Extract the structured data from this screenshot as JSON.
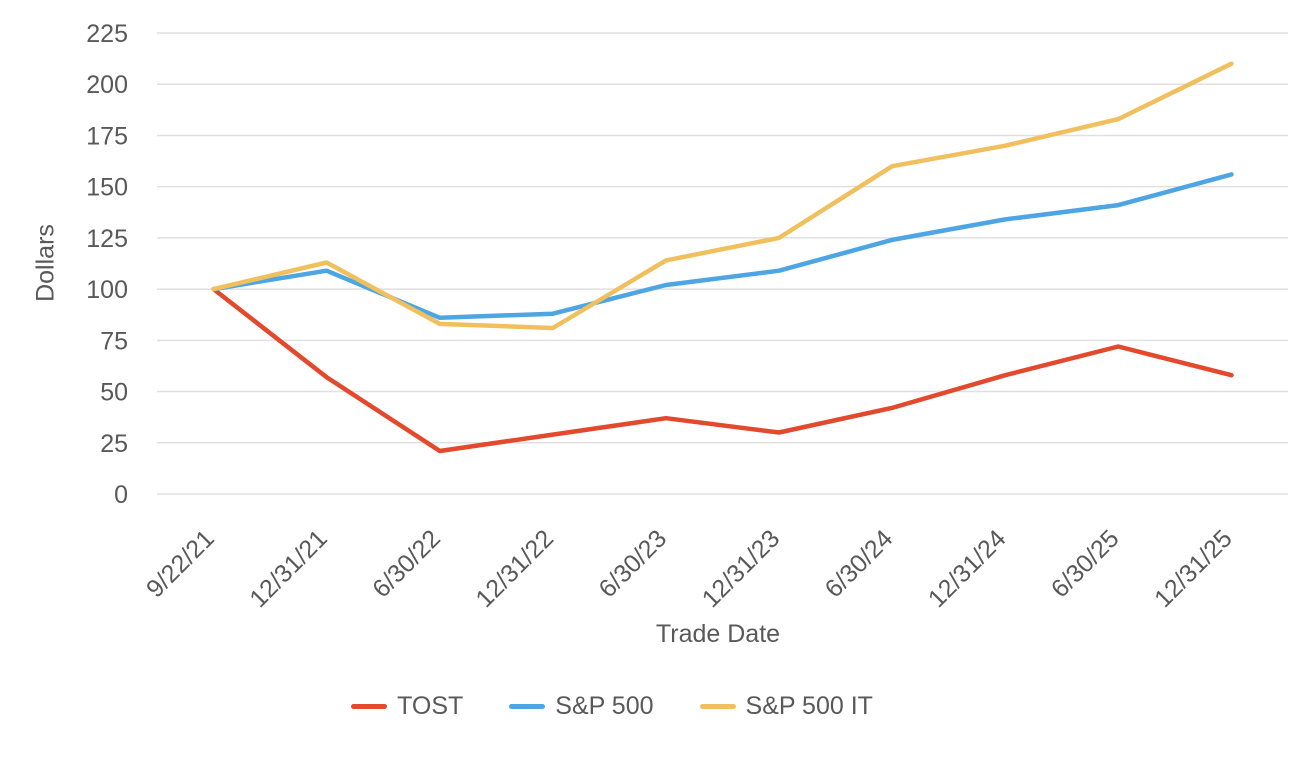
{
  "chart_data": {
    "type": "line",
    "title": "",
    "xlabel": "Trade Date",
    "ylabel": "Dollars",
    "categories": [
      "9/22/21",
      "12/31/21",
      "6/30/22",
      "12/31/22",
      "6/30/23",
      "12/31/23",
      "6/30/24",
      "12/31/24",
      "6/30/25",
      "12/31/25"
    ],
    "series": [
      {
        "name": "TOST",
        "color": "#E2492D",
        "values": [
          100,
          57,
          21,
          29,
          37,
          30,
          42,
          58,
          72,
          58
        ]
      },
      {
        "name": "S&P 500",
        "color": "#4DA6E3",
        "values": [
          100,
          109,
          86,
          88,
          102,
          109,
          124,
          134,
          141,
          156
        ]
      },
      {
        "name": "S&P 500 IT",
        "color": "#F0C05F",
        "values": [
          100,
          113,
          83,
          81,
          114,
          125,
          160,
          170,
          183,
          210
        ]
      }
    ],
    "ylim": [
      0,
      225
    ],
    "ytick_step": 25,
    "grid": true,
    "legend_position": "bottom",
    "axis_text_color": "#595959",
    "gridline_color": "#E0E0E0"
  }
}
